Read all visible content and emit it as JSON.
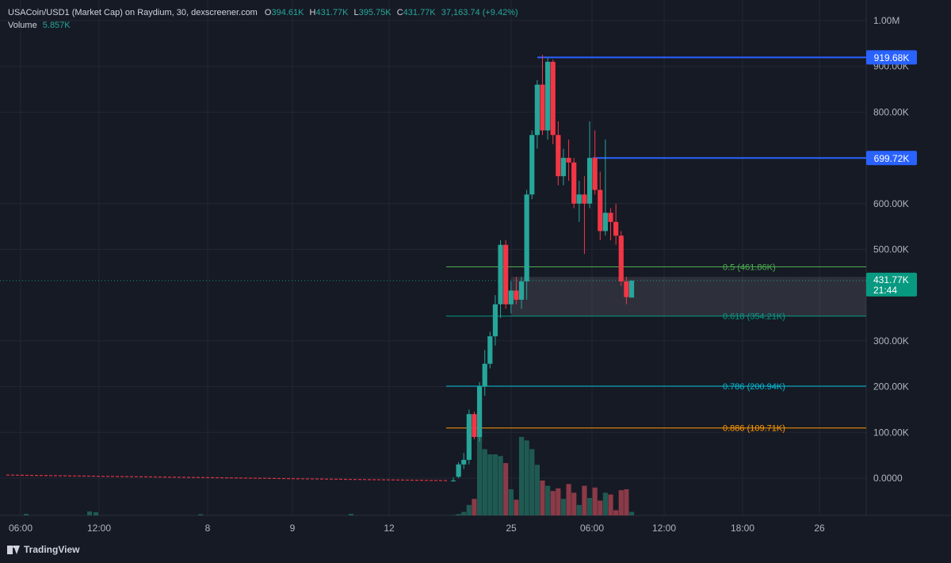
{
  "legend": {
    "symbol": "USACoin/USD1 (Market Cap) on Raydium, 30, dexscreener.com",
    "o_label": "O",
    "o_value": "394.61K",
    "h_label": "H",
    "h_value": "431.77K",
    "l_label": "L",
    "l_value": "395.75K",
    "c_label": "C",
    "c_value": "431.77K",
    "change": "37,163.74 (+9.42%)",
    "volume_label": "Volume",
    "volume_value": "5.857K"
  },
  "branding": {
    "logo_text": "TradingView"
  },
  "colors": {
    "background": "#161a25",
    "grid": "#232734",
    "axis_text": "#b2b5be",
    "up": "#26a69a",
    "down": "#f23645",
    "up_volume": "#1f5a52",
    "down_volume": "#8b3a47",
    "level_blue": "#2962ff",
    "fib_05": "#4caf50",
    "fib_0618": "#089981",
    "fib_0786": "#00bcd4",
    "fib_0886": "#ff9800",
    "price_label": "#089981"
  },
  "chart_data": {
    "type": "candlestick",
    "y_unit": "market cap (USD)",
    "ylim": [
      -60000,
      1030000
    ],
    "y_ticks": [
      {
        "value": 1000000,
        "label": "1.00M"
      },
      {
        "value": 900000,
        "label": "900.00K"
      },
      {
        "value": 800000,
        "label": "800.00K"
      },
      {
        "value": 600000,
        "label": "600.00K"
      },
      {
        "value": 500000,
        "label": "500.00K"
      },
      {
        "value": 300000,
        "label": "300.00K"
      },
      {
        "value": 200000,
        "label": "200.00K"
      },
      {
        "value": 100000,
        "label": "100.00K"
      },
      {
        "value": 0,
        "label": "0.0000"
      }
    ],
    "x_ticks": [
      "06:00",
      "12:00",
      "8",
      "9",
      "12",
      "25",
      "06:00",
      "12:00",
      "18:00",
      "26"
    ],
    "horizontal_levels": [
      {
        "price": 919680,
        "label": "919.68K",
        "color": "#2962ff"
      },
      {
        "price": 699720,
        "label": "699.72K",
        "color": "#2962ff"
      }
    ],
    "fib_levels": [
      {
        "ratio": "0.5",
        "price": 461860,
        "label": "0.5 (461.86K)",
        "color": "#4caf50"
      },
      {
        "ratio": "0.618",
        "price": 354210,
        "label": "0.618 (354.21K)",
        "color": "#089981"
      },
      {
        "ratio": "0.786",
        "price": 200940,
        "label": "0.786 (200.94K)",
        "color": "#00bcd4"
      },
      {
        "ratio": "0.886",
        "price": 109710,
        "label": "0.886 (109.71K)",
        "color": "#ff9800"
      }
    ],
    "fib_zone": {
      "top": 440000,
      "bottom": 354210
    },
    "current_price": {
      "label": "431.77K",
      "countdown": "21:44",
      "price": 431770
    },
    "pre_launch_value": 5000,
    "candles": [
      {
        "o": -5000,
        "h": 2000,
        "l": -8000,
        "c": -5000
      },
      {
        "o": 3000,
        "h": 35000,
        "l": 0,
        "c": 30000
      },
      {
        "o": 30000,
        "h": 55000,
        "l": 20000,
        "c": 40000
      },
      {
        "o": 40000,
        "h": 150000,
        "l": 30000,
        "c": 140000
      },
      {
        "o": 140000,
        "h": 145000,
        "l": 85000,
        "c": 90000
      },
      {
        "o": 90000,
        "h": 210000,
        "l": 80000,
        "c": 200000
      },
      {
        "o": 200000,
        "h": 280000,
        "l": 180000,
        "c": 250000
      },
      {
        "o": 250000,
        "h": 320000,
        "l": 240000,
        "c": 310000
      },
      {
        "o": 310000,
        "h": 400000,
        "l": 290000,
        "c": 380000
      },
      {
        "o": 380000,
        "h": 520000,
        "l": 350000,
        "c": 510000
      },
      {
        "o": 510000,
        "h": 520000,
        "l": 370000,
        "c": 380000
      },
      {
        "o": 380000,
        "h": 430000,
        "l": 360000,
        "c": 410000
      },
      {
        "o": 410000,
        "h": 440000,
        "l": 380000,
        "c": 390000
      },
      {
        "o": 390000,
        "h": 440000,
        "l": 370000,
        "c": 430000
      },
      {
        "o": 430000,
        "h": 630000,
        "l": 390000,
        "c": 620000
      },
      {
        "o": 620000,
        "h": 760000,
        "l": 610000,
        "c": 750000
      },
      {
        "o": 750000,
        "h": 870000,
        "l": 720000,
        "c": 860000
      },
      {
        "o": 860000,
        "h": 925000,
        "l": 750000,
        "c": 760000
      },
      {
        "o": 760000,
        "h": 919000,
        "l": 740000,
        "c": 910000
      },
      {
        "o": 910000,
        "h": 915000,
        "l": 730000,
        "c": 750000
      },
      {
        "o": 750000,
        "h": 780000,
        "l": 640000,
        "c": 660000
      },
      {
        "o": 660000,
        "h": 720000,
        "l": 640000,
        "c": 700000
      },
      {
        "o": 700000,
        "h": 740000,
        "l": 650000,
        "c": 690000
      },
      {
        "o": 690000,
        "h": 700000,
        "l": 590000,
        "c": 600000
      },
      {
        "o": 600000,
        "h": 650000,
        "l": 560000,
        "c": 620000
      },
      {
        "o": 620000,
        "h": 660000,
        "l": 490000,
        "c": 600000
      },
      {
        "o": 600000,
        "h": 780000,
        "l": 590000,
        "c": 700000
      },
      {
        "o": 700000,
        "h": 760000,
        "l": 620000,
        "c": 630000
      },
      {
        "o": 630000,
        "h": 670000,
        "l": 520000,
        "c": 540000
      },
      {
        "o": 540000,
        "h": 740000,
        "l": 530000,
        "c": 580000
      },
      {
        "o": 580000,
        "h": 590000,
        "l": 520000,
        "c": 560000
      },
      {
        "o": 560000,
        "h": 600000,
        "l": 510000,
        "c": 530000
      },
      {
        "o": 530000,
        "h": 540000,
        "l": 420000,
        "c": 430000
      },
      {
        "o": 430000,
        "h": 440000,
        "l": 380000,
        "c": 395750
      },
      {
        "o": 394610,
        "h": 431770,
        "l": 395750,
        "c": 431770
      }
    ],
    "volume_scale_max": 1000,
    "volumes": [
      5,
      15,
      40,
      120,
      190,
      970,
      760,
      700,
      700,
      680,
      600,
      300,
      180,
      900,
      860,
      760,
      580,
      400,
      340,
      280,
      310,
      190,
      360,
      260,
      120,
      340,
      200,
      320,
      170,
      260,
      240,
      60,
      290,
      300,
      40
    ]
  }
}
